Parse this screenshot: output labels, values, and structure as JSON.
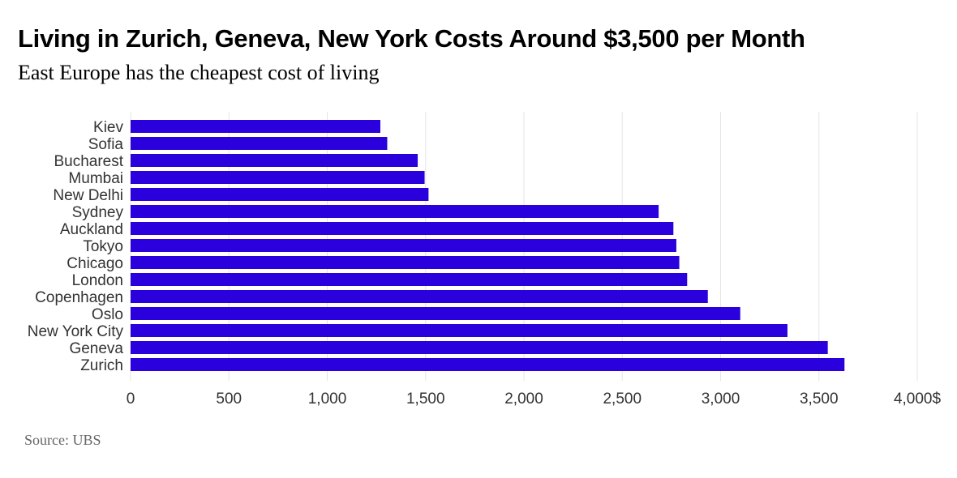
{
  "chart_data": {
    "type": "bar",
    "orientation": "horizontal",
    "title": "Living in Zurich, Geneva, New York Costs Around $3,500 per Month",
    "subtitle": "East Europe has the cheapest cost of living",
    "source": "Source: UBS",
    "categories": [
      "Kiev",
      "Sofia",
      "Bucharest",
      "Mumbai",
      "New Delhi",
      "Sydney",
      "Auckland",
      "Tokyo",
      "Chicago",
      "London",
      "Copenhagen",
      "Oslo",
      "New York City",
      "Geneva",
      "Zurich"
    ],
    "values": [
      1270,
      1305,
      1460,
      1495,
      1515,
      2685,
      2760,
      2775,
      2790,
      2830,
      2935,
      3100,
      3340,
      3545,
      3630
    ],
    "xlim": [
      0,
      4000
    ],
    "xticks": [
      "0",
      "500",
      "1,000",
      "1,500",
      "2,000",
      "2,500",
      "3,000",
      "3,500",
      "4,000$"
    ],
    "xtick_values": [
      0,
      500,
      1000,
      1500,
      2000,
      2500,
      3000,
      3500,
      4000
    ],
    "grid": "vertical",
    "bar_color": "#2a00dc",
    "grid_color": "#e5e5e5"
  }
}
